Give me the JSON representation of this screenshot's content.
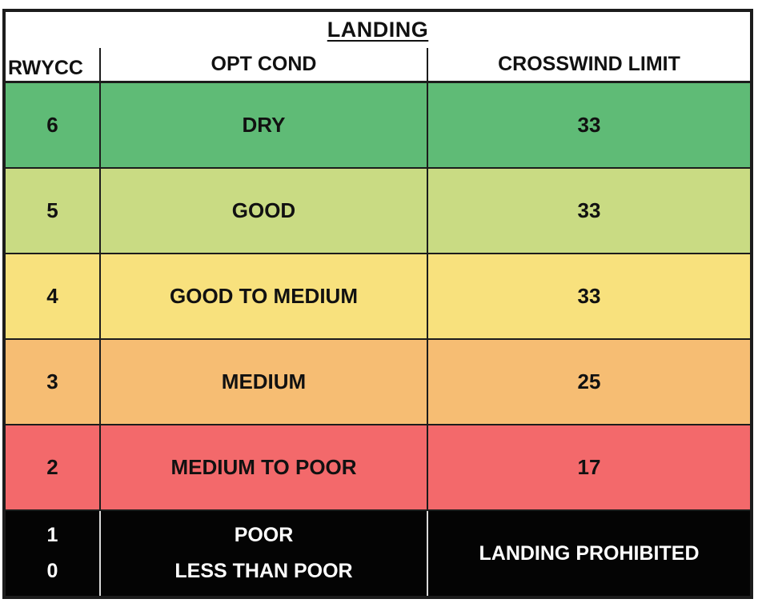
{
  "table": {
    "title": "LANDING",
    "columns": {
      "rwycc": "RWYCC",
      "opt_cond": "OPT COND",
      "crosswind_limit": "CROSSWIND LIMIT"
    },
    "rows": [
      {
        "rwycc": "6",
        "opt_cond": "DRY",
        "crosswind_limit": "33",
        "bg": "#5fbb76",
        "fg": "#ffffff"
      },
      {
        "rwycc": "5",
        "opt_cond": "GOOD",
        "crosswind_limit": "33",
        "bg": "#c9db83",
        "fg": "#111111"
      },
      {
        "rwycc": "4",
        "opt_cond": "GOOD TO MEDIUM",
        "crosswind_limit": "33",
        "bg": "#f8e17d",
        "fg": "#111111"
      },
      {
        "rwycc": "3",
        "opt_cond": "MEDIUM",
        "crosswind_limit": "25",
        "bg": "#f6bd73",
        "fg": "#111111"
      },
      {
        "rwycc": "2",
        "opt_cond": "MEDIUM TO POOR",
        "crosswind_limit": "17",
        "bg": "#f3696b",
        "fg": "#111111"
      }
    ],
    "prohibited_row": {
      "rwycc_values": {
        "first": "1",
        "second": "0"
      },
      "opt_cond_values": {
        "first": "POOR",
        "second": "LESS THAN POOR"
      },
      "crosswind_limit": "LANDING PROHIBITED",
      "bg": "#040404",
      "fg": "#ffffff"
    }
  },
  "colors": {
    "page_background": "#ffffff",
    "table_border": "#1c1c1c",
    "rwycc_6_green": "#5fbb76",
    "rwycc_5_light_green": "#c9db83",
    "rwycc_4_yellow": "#f8e17d",
    "rwycc_3_orange": "#f6bd73",
    "rwycc_2_red": "#f3696b",
    "prohibited_black": "#040404"
  }
}
